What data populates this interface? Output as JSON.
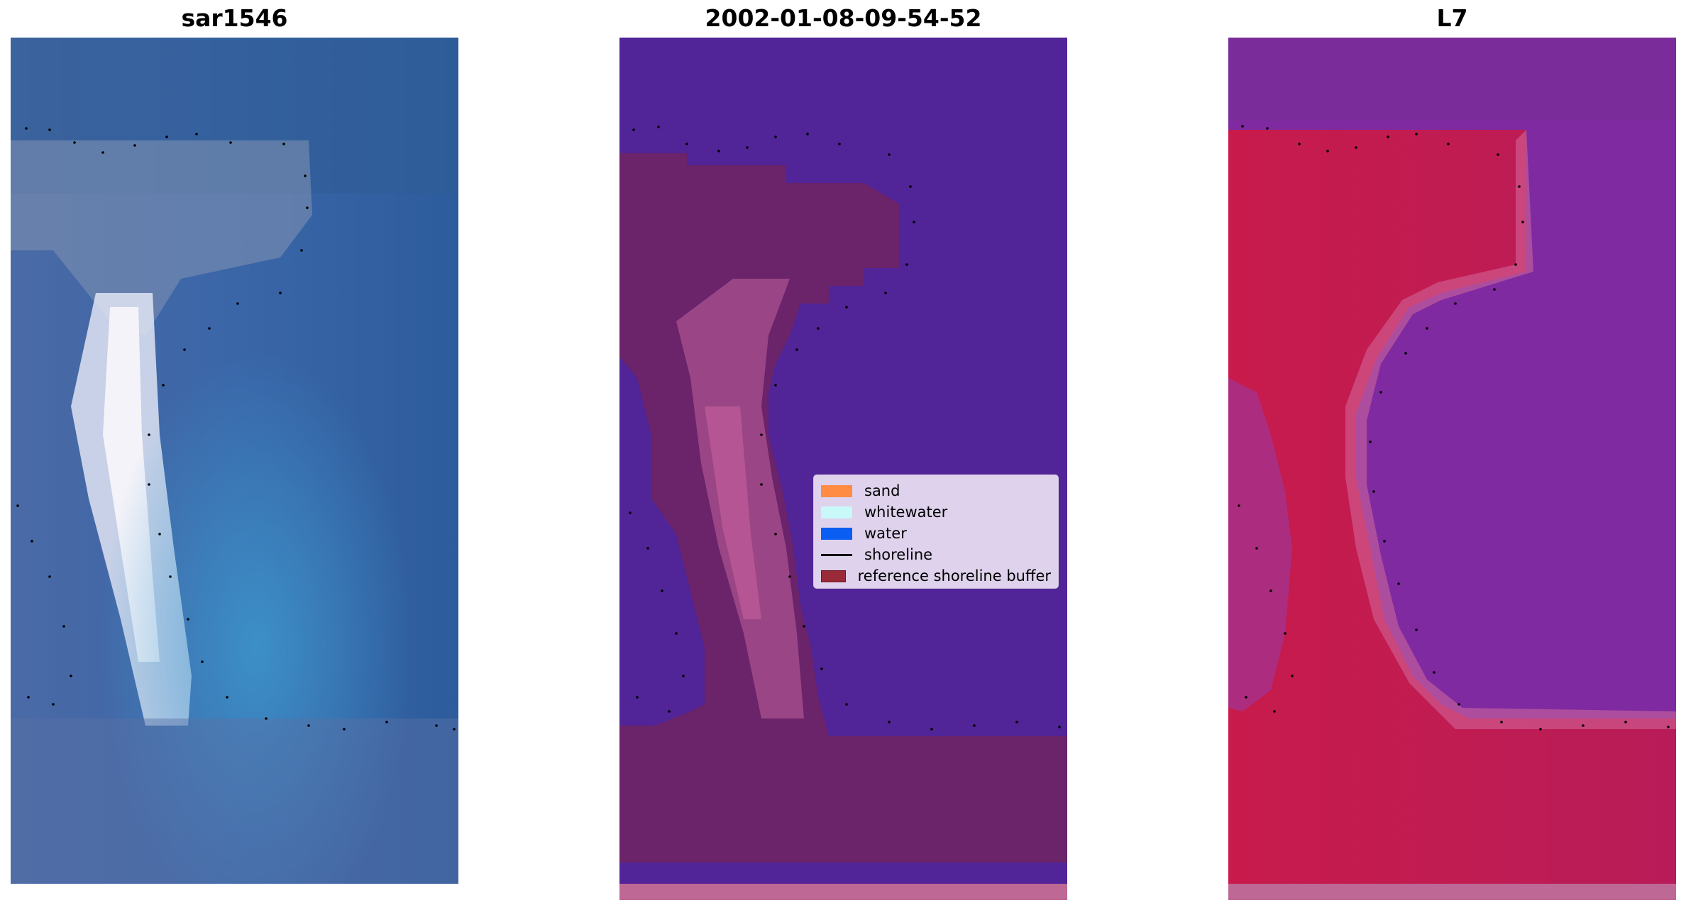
{
  "panels": [
    {
      "title": "sar1546"
    },
    {
      "title": "2002-01-08-09-54-52"
    },
    {
      "title": "L7"
    }
  ],
  "legend": {
    "items": [
      {
        "label": "sand",
        "color": "#ff8c42",
        "kind": "patch"
      },
      {
        "label": "whitewater",
        "color": "#c8f8f8",
        "kind": "patch"
      },
      {
        "label": "water",
        "color": "#0a5ef2",
        "kind": "patch"
      },
      {
        "label": "shoreline",
        "color": "#000000",
        "kind": "line"
      },
      {
        "label": "reference shoreline buffer",
        "color": "#9a2a38",
        "kind": "patch"
      }
    ]
  },
  "colors": {
    "rgb_water": "#2e5a96",
    "rgb_sand": "#dcdcea",
    "class_water": "#512497",
    "class_buffer": "#6e2468",
    "class_sand_highlight": "#b85896",
    "index_land": "#c8194a",
    "index_water": "#7f2aa0"
  }
}
